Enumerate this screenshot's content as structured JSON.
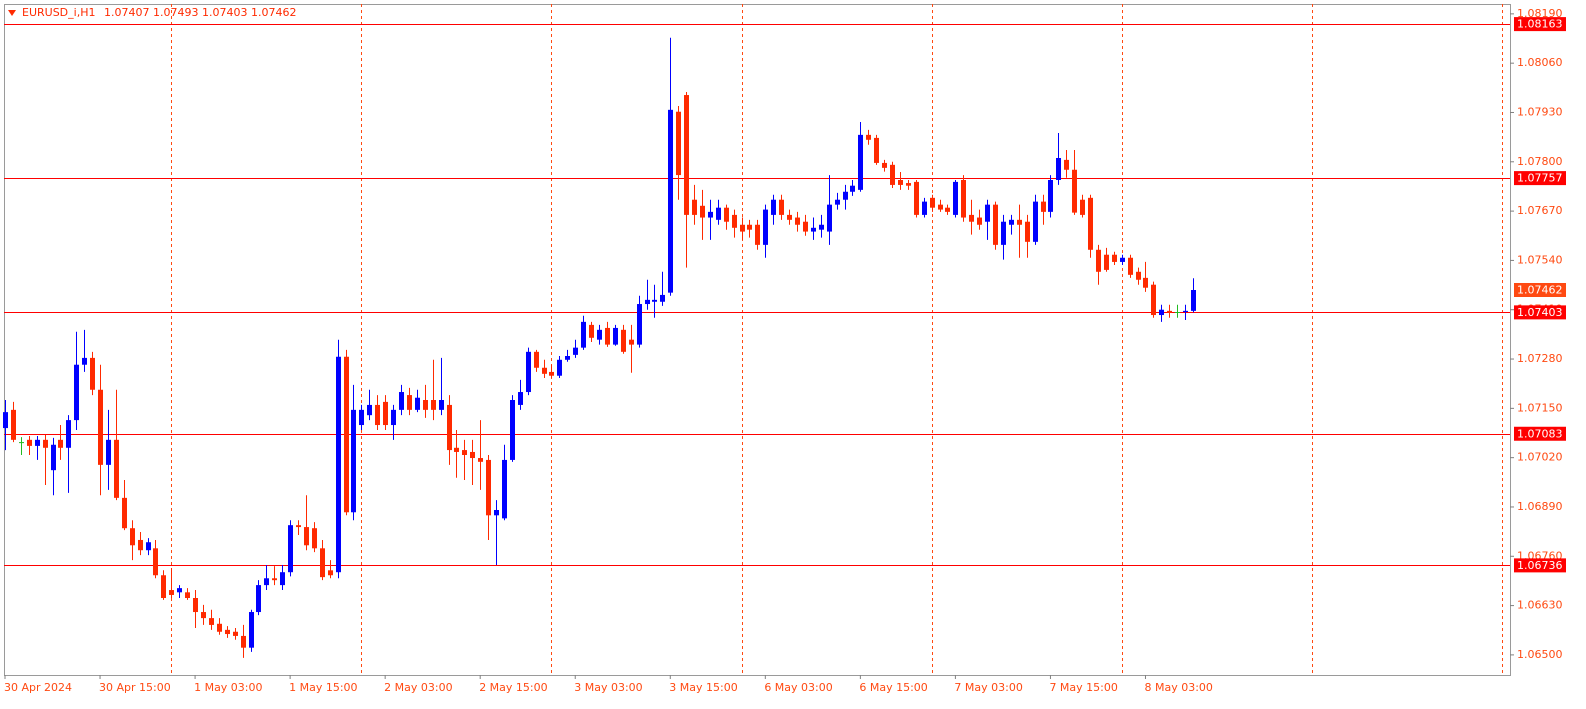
{
  "chart_data": {
    "type": "candlestick",
    "symbol": "EURUSD_i,H1",
    "categories": [
      "30 Apr 2024",
      null,
      null,
      null,
      null,
      null,
      null,
      null,
      null,
      null,
      null,
      null,
      "30 Apr 15:00",
      null,
      null,
      null,
      null,
      null,
      null,
      null,
      null,
      null,
      null,
      null,
      "1 May 03:00",
      null,
      null,
      null,
      null,
      null,
      null,
      null,
      null,
      null,
      null,
      null,
      "1 May 15:00",
      null,
      null,
      null,
      null,
      null,
      null,
      null,
      null,
      null,
      null,
      null,
      "2 May 03:00",
      null,
      null,
      null,
      null,
      null,
      null,
      null,
      null,
      null,
      null,
      null,
      "2 May 15:00",
      null,
      null,
      null,
      null,
      null,
      null,
      null,
      null,
      null,
      null,
      null,
      "3 May 03:00",
      null,
      null,
      null,
      null,
      null,
      null,
      null,
      null,
      null,
      null,
      null,
      "3 May 15:00",
      null,
      null,
      null,
      null,
      null,
      null,
      null,
      null,
      null,
      null,
      null,
      "6 May 03:00",
      null,
      null,
      null,
      null,
      null,
      null,
      null,
      null,
      null,
      null,
      null,
      "6 May 15:00",
      null,
      null,
      null,
      null,
      null,
      null,
      null,
      null,
      null,
      null,
      null,
      "7 May 03:00",
      null,
      null,
      null,
      null,
      null,
      null,
      null,
      null,
      null,
      null,
      null,
      "7 May 15:00",
      null,
      null,
      null,
      null,
      null,
      null,
      null,
      null,
      null,
      null,
      null,
      "8 May 03:00",
      null,
      null,
      null,
      null,
      null,
      null
    ],
    "open": [
      1.07098,
      1.07146,
      1.07061,
      1.07067,
      1.07051,
      1.07067,
      1.06987,
      1.07067,
      1.07046,
      1.07119,
      1.07265,
      1.07283,
      1.07199,
      1.07001,
      1.07067,
      1.06914,
      1.06834,
      1.06803,
      1.06776,
      1.06781,
      1.0671,
      1.06671,
      1.06665,
      1.06665,
      1.0665,
      1.06613,
      1.06597,
      1.06582,
      1.06566,
      1.06561,
      1.0655,
      1.06519,
      1.06613,
      1.06684,
      1.06702,
      1.06684,
      1.06718,
      1.06842,
      1.06837,
      1.06834,
      1.06781,
      1.06723,
      1.06718,
      1.07286,
      1.06876,
      1.07106,
      1.07132,
      1.07159,
      1.07167,
      1.07106,
      1.07146,
      1.07185,
      1.07146,
      1.07172,
      1.07172,
      1.07146,
      1.07159,
      1.07046,
      1.0704,
      1.07035,
      1.07019,
      1.07014,
      1.06868,
      1.0686,
      1.07014,
      1.07159,
      1.07193,
      1.07299,
      1.07257,
      1.07246,
      1.07236,
      1.07278,
      1.07291,
      1.0731,
      1.0737,
      1.07331,
      1.07362,
      1.07318,
      1.07357,
      1.07331,
      1.07318,
      1.07425,
      1.07431,
      1.07431,
      1.07455,
      1.07932,
      1.07976,
      1.077,
      1.07684,
      1.07653,
      1.07647,
      1.07679,
      1.0766,
      1.07634,
      1.07634,
      1.07634,
      1.07581,
      1.0766,
      1.077,
      1.0766,
      1.07653,
      1.07642,
      1.07616,
      1.07621,
      1.07616,
      1.07687,
      1.077,
      1.07721,
      1.07726,
      1.07871,
      1.07863,
      1.07797,
      1.07792,
      1.07752,
      1.07744,
      1.07747,
      1.0766,
      1.07705,
      1.07687,
      1.07679,
      1.0766,
      1.07752,
      1.0766,
      1.07653,
      1.07642,
      1.07687,
      1.07581,
      1.07634,
      1.07647,
      1.07642,
      1.07589,
      1.07695,
      1.07668,
      1.07752,
      1.07805,
      1.07779,
      1.077,
      1.07705,
      1.07568,
      1.07555,
      1.07555,
      1.07536,
      1.07547,
      1.0751,
      1.07494,
      1.07476,
      1.07396,
      1.07407,
      1.07404,
      1.07404,
      1.07407
    ],
    "high": [
      1.07172,
      1.07167,
      1.07074,
      1.07077,
      1.07077,
      1.0708,
      1.07072,
      1.07106,
      1.07132,
      1.07352,
      1.07357,
      1.07299,
      1.07265,
      1.07146,
      1.07199,
      1.06961,
      1.06855,
      1.06824,
      1.06808,
      1.06803,
      1.06723,
      1.06729,
      1.06684,
      1.06676,
      1.06671,
      1.06632,
      1.06619,
      1.06597,
      1.06576,
      1.06571,
      1.06579,
      1.06619,
      1.06697,
      1.06737,
      1.06734,
      1.06737,
      1.06855,
      1.06855,
      1.06921,
      1.0685,
      1.06803,
      1.0675,
      1.07331,
      1.07304,
      1.07212,
      1.07159,
      1.07199,
      1.07185,
      1.07185,
      1.07159,
      1.07212,
      1.07204,
      1.07199,
      1.07212,
      1.07278,
      1.07283,
      1.07185,
      1.07093,
      1.07067,
      1.07067,
      1.07119,
      1.07027,
      1.06908,
      1.07054,
      1.07185,
      1.07225,
      1.0731,
      1.07304,
      1.07278,
      1.07265,
      1.07288,
      1.07304,
      1.07331,
      1.07394,
      1.07378,
      1.0737,
      1.07378,
      1.0737,
      1.0737,
      1.0737,
      1.07447,
      1.07489,
      1.07476,
      1.0751,
      1.08127,
      1.07947,
      1.07984,
      1.07739,
      1.07726,
      1.077,
      1.077,
      1.07687,
      1.07674,
      1.07653,
      1.07647,
      1.07647,
      1.07687,
      1.07713,
      1.07713,
      1.07674,
      1.07668,
      1.0766,
      1.07653,
      1.0766,
      1.07765,
      1.07718,
      1.07739,
      1.07752,
      1.07905,
      1.07884,
      1.07871,
      1.07805,
      1.078,
      1.07773,
      1.07752,
      1.07752,
      1.07705,
      1.07713,
      1.077,
      1.07687,
      1.07752,
      1.07765,
      1.077,
      1.07674,
      1.077,
      1.07695,
      1.0766,
      1.0766,
      1.07687,
      1.0766,
      1.07713,
      1.07713,
      1.07765,
      1.07876,
      1.07831,
      1.07831,
      1.07713,
      1.07713,
      1.07581,
      1.07573,
      1.07563,
      1.07555,
      1.07555,
      1.07521,
      1.07536,
      1.07484,
      1.07423,
      1.07423,
      1.07423,
      1.07423,
      1.07493
    ],
    "low": [
      1.0704,
      1.07061,
      1.07027,
      1.07027,
      1.07014,
      1.06948,
      1.06921,
      1.07014,
      1.06927,
      1.07093,
      1.07246,
      1.07185,
      1.06921,
      1.06935,
      1.06908,
      1.06829,
      1.0675,
      1.06763,
      1.06763,
      1.06702,
      1.06645,
      1.0665,
      1.0665,
      1.06645,
      1.06571,
      1.06579,
      1.06566,
      1.06553,
      1.06545,
      1.0654,
      1.06492,
      1.06508,
      1.06605,
      1.06671,
      1.06684,
      1.06671,
      1.06707,
      1.06816,
      1.06776,
      1.06771,
      1.06697,
      1.06702,
      1.06702,
      1.06868,
      1.06855,
      1.07093,
      1.07119,
      1.07093,
      1.07093,
      1.07067,
      1.07132,
      1.07132,
      1.0714,
      1.07125,
      1.07119,
      1.07132,
      1.07001,
      1.06967,
      1.06961,
      1.06948,
      1.06935,
      1.06803,
      1.06737,
      1.06855,
      1.07009,
      1.07146,
      1.07185,
      1.07246,
      1.0723,
      1.0723,
      1.0723,
      1.07273,
      1.07283,
      1.07304,
      1.07325,
      1.07318,
      1.07312,
      1.07315,
      1.07294,
      1.07244,
      1.0731,
      1.0741,
      1.07389,
      1.0742,
      1.07447,
      1.077,
      1.07521,
      1.07634,
      1.07594,
      1.07594,
      1.07634,
      1.07621,
      1.076,
      1.07594,
      1.076,
      1.07568,
      1.07547,
      1.07634,
      1.07647,
      1.07634,
      1.07616,
      1.07605,
      1.07594,
      1.076,
      1.07581,
      1.07674,
      1.07674,
      1.0771,
      1.07721,
      1.07845,
      1.07792,
      1.07774,
      1.07731,
      1.07726,
      1.07726,
      1.07653,
      1.07653,
      1.07668,
      1.07668,
      1.0766,
      1.07653,
      1.07642,
      1.07608,
      1.07621,
      1.07594,
      1.07568,
      1.07542,
      1.07608,
      1.07547,
      1.07547,
      1.07581,
      1.07634,
      1.07653,
      1.07739,
      1.07758,
      1.0766,
      1.07653,
      1.07547,
      1.07476,
      1.0751,
      1.07528,
      1.07528,
      1.07494,
      1.07476,
      1.07457,
      1.07389,
      1.07378,
      1.07389,
      1.07389,
      1.07383,
      1.07403
    ],
    "close": [
      1.0714,
      1.07067,
      1.07061,
      1.07051,
      1.07067,
      1.07046,
      1.07054,
      1.07046,
      1.07119,
      1.07265,
      1.07283,
      1.07199,
      1.07001,
      1.07067,
      1.06914,
      1.06834,
      1.06789,
      1.06776,
      1.06797,
      1.0671,
      1.0665,
      1.06658,
      1.06676,
      1.0665,
      1.06613,
      1.06597,
      1.06579,
      1.06561,
      1.06555,
      1.0655,
      1.06519,
      1.06613,
      1.06684,
      1.06702,
      1.06697,
      1.06718,
      1.06842,
      1.06837,
      1.06789,
      1.06781,
      1.06705,
      1.0671,
      1.07286,
      1.06876,
      1.07146,
      1.07146,
      1.07159,
      1.07106,
      1.07106,
      1.07146,
      1.07193,
      1.07146,
      1.07178,
      1.07146,
      1.07146,
      1.07172,
      1.0704,
      1.07035,
      1.07027,
      1.07019,
      1.07009,
      1.06868,
      1.06882,
      1.07014,
      1.07172,
      1.07193,
      1.07299,
      1.07257,
      1.07241,
      1.07236,
      1.07278,
      1.07288,
      1.0731,
      1.07378,
      1.07336,
      1.07357,
      1.07318,
      1.07362,
      1.07299,
      1.07318,
      1.07425,
      1.07436,
      1.07436,
      1.07449,
      1.07937,
      1.07765,
      1.0766,
      1.0766,
      1.07653,
      1.07668,
      1.07679,
      1.07642,
      1.07626,
      1.07616,
      1.07621,
      1.07581,
      1.07674,
      1.077,
      1.0766,
      1.07647,
      1.07634,
      1.07616,
      1.07626,
      1.07634,
      1.07687,
      1.077,
      1.07721,
      1.07737,
      1.07871,
      1.07858,
      1.07797,
      1.07784,
      1.07739,
      1.07739,
      1.07737,
      1.0766,
      1.07695,
      1.07679,
      1.07674,
      1.07668,
      1.07747,
      1.07653,
      1.07642,
      1.07634,
      1.07687,
      1.07581,
      1.07642,
      1.07647,
      1.07634,
      1.07589,
      1.07695,
      1.07668,
      1.07752,
      1.0781,
      1.07779,
      1.07666,
      1.0766,
      1.07568,
      1.0751,
      1.07515,
      1.07536,
      1.07547,
      1.07502,
      1.07489,
      1.07468,
      1.07396,
      1.0741,
      1.07402,
      1.07404,
      1.07407,
      1.07462
    ],
    "up_color": "#0000ff",
    "down_color": "#ff2a00",
    "doji_color": "#22bb22",
    "ylim": [
      1.06447,
      1.08216
    ],
    "yticks": [
      {
        "value": 1.0819,
        "label": "1.08190"
      },
      {
        "value": 1.0806,
        "label": "1.08060"
      },
      {
        "value": 1.0793,
        "label": "1.07930"
      },
      {
        "value": 1.078,
        "label": "1.07800"
      },
      {
        "value": 1.0767,
        "label": "1.07670"
      },
      {
        "value": 1.0754,
        "label": "1.07540"
      },
      {
        "value": 1.0741,
        "label": "1.07410"
      },
      {
        "value": 1.0728,
        "label": "1.07280"
      },
      {
        "value": 1.0715,
        "label": "1.07150"
      },
      {
        "value": 1.0702,
        "label": "1.07020"
      },
      {
        "value": 1.0689,
        "label": "1.06890"
      },
      {
        "value": 1.0676,
        "label": "1.06760"
      },
      {
        "value": 1.0663,
        "label": "1.06630"
      },
      {
        "value": 1.065,
        "label": "1.06500"
      }
    ],
    "levels": [
      1.08163,
      1.07757,
      1.07403,
      1.07083,
      1.06736
    ],
    "level_color": "#ff0000",
    "axis_color": "#ff4a12",
    "grid": true
  }
}
